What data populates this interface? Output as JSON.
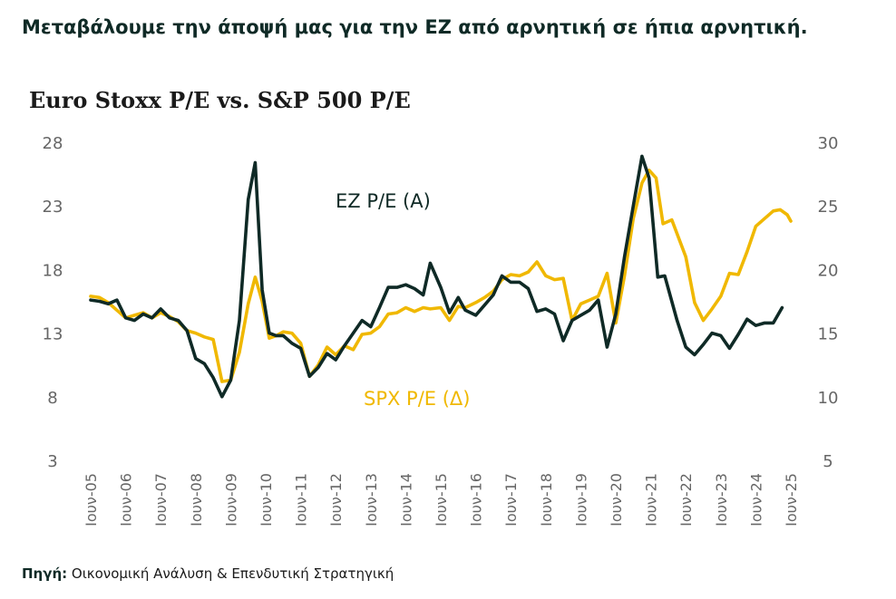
{
  "headline": "Μεταβάλουμε την άποψή μας για την ΕΖ από αρνητική σε ήπια αρνητική.",
  "footer": {
    "source_label": "Πηγή:",
    "source_text": " Οικονομική Ανάλυση & Επενδυτική Στρατηγική"
  },
  "colors": {
    "ez": "#0f2a26",
    "spx": "#f0b800",
    "axis_text": "#666666"
  },
  "chart_data": {
    "type": "line",
    "title": "Euro Stoxx P/E vs. S&P 500 P/E",
    "x_tick_labels": [
      "Ιουν-05",
      "Ιουν-06",
      "Ιουν-07",
      "Ιουν-08",
      "Ιουν-09",
      "Ιουν-10",
      "Ιουν-11",
      "Ιουν-12",
      "Ιουν-13",
      "Ιουν-14",
      "Ιουν-15",
      "Ιουν-16",
      "Ιουν-17",
      "Ιουν-18",
      "Ιουν-19",
      "Ιουν-20",
      "Ιουν-21",
      "Ιουν-22",
      "Ιουν-23",
      "Ιουν-24",
      "Ιουν-25"
    ],
    "y_left": {
      "ticks": [
        28,
        23,
        18,
        13,
        8,
        3
      ],
      "range": [
        3,
        28
      ]
    },
    "y_right": {
      "ticks": [
        30,
        25,
        20,
        15,
        10,
        5
      ],
      "range": [
        5,
        30
      ]
    },
    "grid": false,
    "series": [
      {
        "name": "EZ P/E (A)",
        "axis": "left",
        "points": [
          [
            2005.5,
            15.6
          ],
          [
            2005.75,
            15.5
          ],
          [
            2006.0,
            15.3
          ],
          [
            2006.25,
            15.6
          ],
          [
            2006.5,
            14.2
          ],
          [
            2006.75,
            14.0
          ],
          [
            2007.0,
            14.5
          ],
          [
            2007.25,
            14.2
          ],
          [
            2007.5,
            14.9
          ],
          [
            2007.75,
            14.2
          ],
          [
            2008.0,
            14.0
          ],
          [
            2008.25,
            13.2
          ],
          [
            2008.5,
            11.0
          ],
          [
            2008.75,
            10.6
          ],
          [
            2009.0,
            9.5
          ],
          [
            2009.25,
            8.0
          ],
          [
            2009.5,
            9.3
          ],
          [
            2009.75,
            14.0
          ],
          [
            2010.0,
            23.5
          ],
          [
            2010.2,
            26.4
          ],
          [
            2010.4,
            16.4
          ],
          [
            2010.6,
            13.0
          ],
          [
            2010.8,
            12.8
          ],
          [
            2011.0,
            12.8
          ],
          [
            2011.25,
            12.2
          ],
          [
            2011.5,
            11.8
          ],
          [
            2011.75,
            9.6
          ],
          [
            2012.0,
            10.3
          ],
          [
            2012.25,
            11.4
          ],
          [
            2012.5,
            10.9
          ],
          [
            2012.75,
            12.0
          ],
          [
            2013.0,
            13.0
          ],
          [
            2013.25,
            14.0
          ],
          [
            2013.5,
            13.5
          ],
          [
            2013.75,
            15.0
          ],
          [
            2014.0,
            16.6
          ],
          [
            2014.25,
            16.6
          ],
          [
            2014.5,
            16.8
          ],
          [
            2014.75,
            16.5
          ],
          [
            2015.0,
            16.0
          ],
          [
            2015.2,
            18.5
          ],
          [
            2015.5,
            16.6
          ],
          [
            2015.75,
            14.6
          ],
          [
            2016.0,
            15.8
          ],
          [
            2016.2,
            14.8
          ],
          [
            2016.5,
            14.4
          ],
          [
            2016.75,
            15.2
          ],
          [
            2017.0,
            16.0
          ],
          [
            2017.25,
            17.5
          ],
          [
            2017.5,
            17.0
          ],
          [
            2017.75,
            17.0
          ],
          [
            2018.0,
            16.5
          ],
          [
            2018.25,
            14.7
          ],
          [
            2018.5,
            14.9
          ],
          [
            2018.75,
            14.5
          ],
          [
            2019.0,
            12.4
          ],
          [
            2019.25,
            14.0
          ],
          [
            2019.5,
            14.4
          ],
          [
            2019.75,
            14.8
          ],
          [
            2020.0,
            15.6
          ],
          [
            2020.25,
            11.9
          ],
          [
            2020.5,
            14.5
          ],
          [
            2020.75,
            19.0
          ],
          [
            2021.0,
            23.0
          ],
          [
            2021.25,
            26.9
          ],
          [
            2021.45,
            25.2
          ],
          [
            2021.7,
            17.4
          ],
          [
            2021.9,
            17.5
          ],
          [
            2022.25,
            14.0
          ],
          [
            2022.5,
            11.9
          ],
          [
            2022.75,
            11.3
          ],
          [
            2023.0,
            12.1
          ],
          [
            2023.25,
            13.0
          ],
          [
            2023.5,
            12.8
          ],
          [
            2023.75,
            11.8
          ],
          [
            2024.0,
            12.9
          ],
          [
            2024.25,
            14.1
          ],
          [
            2024.5,
            13.6
          ],
          [
            2024.75,
            13.8
          ],
          [
            2025.0,
            13.8
          ],
          [
            2025.25,
            15.0
          ]
        ]
      },
      {
        "name": "SPX P/E (Δ)",
        "axis": "right",
        "points": [
          [
            2005.5,
            17.9
          ],
          [
            2005.75,
            17.8
          ],
          [
            2006.0,
            17.4
          ],
          [
            2006.25,
            16.8
          ],
          [
            2006.5,
            16.2
          ],
          [
            2006.75,
            16.4
          ],
          [
            2007.0,
            16.6
          ],
          [
            2007.25,
            16.2
          ],
          [
            2007.5,
            16.6
          ],
          [
            2007.75,
            16.3
          ],
          [
            2008.0,
            15.9
          ],
          [
            2008.25,
            15.2
          ],
          [
            2008.5,
            15.0
          ],
          [
            2008.75,
            14.7
          ],
          [
            2009.0,
            14.5
          ],
          [
            2009.25,
            11.2
          ],
          [
            2009.5,
            11.3
          ],
          [
            2009.75,
            13.5
          ],
          [
            2010.0,
            17.3
          ],
          [
            2010.2,
            19.4
          ],
          [
            2010.4,
            17.5
          ],
          [
            2010.6,
            14.6
          ],
          [
            2010.8,
            14.8
          ],
          [
            2011.0,
            15.1
          ],
          [
            2011.25,
            15.0
          ],
          [
            2011.5,
            14.2
          ],
          [
            2011.75,
            11.6
          ],
          [
            2012.0,
            12.5
          ],
          [
            2012.25,
            13.9
          ],
          [
            2012.5,
            13.3
          ],
          [
            2012.75,
            14.0
          ],
          [
            2013.0,
            13.7
          ],
          [
            2013.25,
            14.9
          ],
          [
            2013.5,
            15.0
          ],
          [
            2013.75,
            15.5
          ],
          [
            2014.0,
            16.5
          ],
          [
            2014.25,
            16.6
          ],
          [
            2014.5,
            17.0
          ],
          [
            2014.75,
            16.7
          ],
          [
            2015.0,
            17.0
          ],
          [
            2015.2,
            16.9
          ],
          [
            2015.5,
            17.0
          ],
          [
            2015.75,
            16.0
          ],
          [
            2016.0,
            17.1
          ],
          [
            2016.2,
            17.0
          ],
          [
            2016.5,
            17.4
          ],
          [
            2016.75,
            17.8
          ],
          [
            2017.0,
            18.3
          ],
          [
            2017.25,
            19.2
          ],
          [
            2017.5,
            19.6
          ],
          [
            2017.75,
            19.5
          ],
          [
            2018.0,
            19.8
          ],
          [
            2018.25,
            20.6
          ],
          [
            2018.5,
            19.5
          ],
          [
            2018.75,
            19.2
          ],
          [
            2019.0,
            19.3
          ],
          [
            2019.25,
            16.0
          ],
          [
            2019.5,
            17.3
          ],
          [
            2019.75,
            17.6
          ],
          [
            2020.0,
            17.9
          ],
          [
            2020.25,
            19.7
          ],
          [
            2020.5,
            15.8
          ],
          [
            2020.75,
            19.5
          ],
          [
            2021.0,
            24.0
          ],
          [
            2021.25,
            26.8
          ],
          [
            2021.45,
            27.8
          ],
          [
            2021.65,
            27.2
          ],
          [
            2021.85,
            23.6
          ],
          [
            2022.1,
            23.9
          ],
          [
            2022.5,
            21.0
          ],
          [
            2022.75,
            17.4
          ],
          [
            2023.0,
            16.0
          ],
          [
            2023.25,
            16.9
          ],
          [
            2023.5,
            17.9
          ],
          [
            2023.75,
            19.7
          ],
          [
            2024.0,
            19.6
          ],
          [
            2024.25,
            21.4
          ],
          [
            2024.5,
            23.4
          ],
          [
            2024.75,
            24.0
          ],
          [
            2025.0,
            24.6
          ],
          [
            2025.2,
            24.7
          ],
          [
            2025.4,
            24.3
          ],
          [
            2025.5,
            23.8
          ]
        ]
      }
    ],
    "annotations": [
      {
        "text": "EZ P/E (A)",
        "series": "EZ P/E (A)"
      },
      {
        "text": "SPX P/E (Δ)",
        "series": "SPX P/E (Δ)"
      }
    ]
  }
}
